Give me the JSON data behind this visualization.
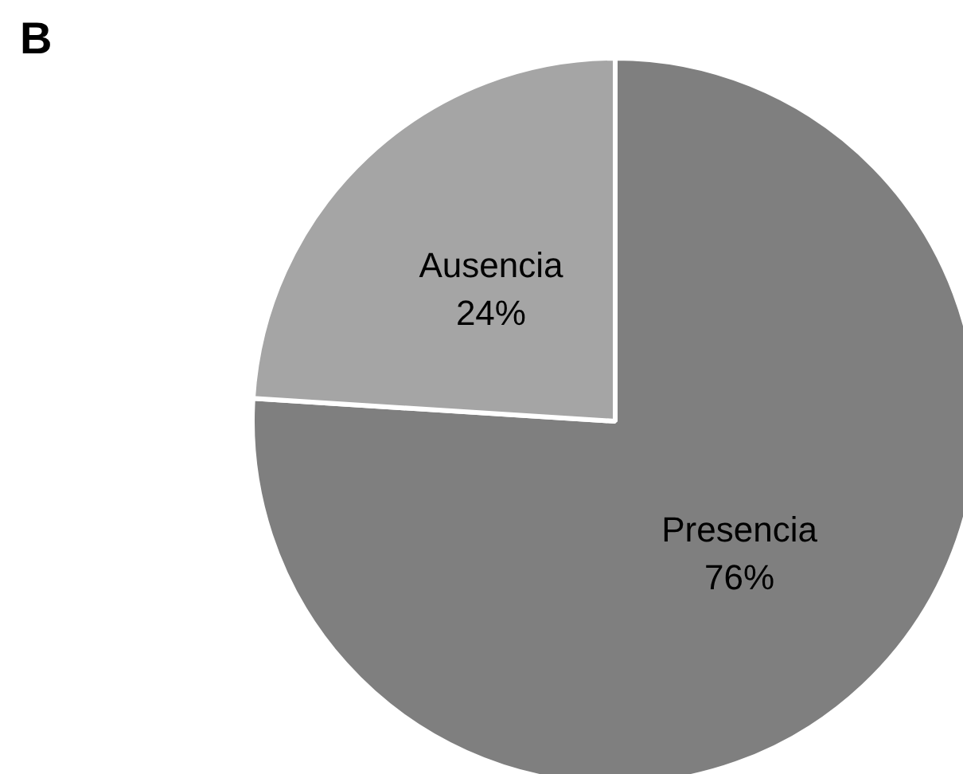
{
  "chart_data": {
    "type": "pie",
    "title": "B",
    "categories": [
      "Presencia",
      "Ausencia"
    ],
    "values": [
      76,
      24
    ],
    "colors": [
      "#7f7f7f",
      "#a5a5a5"
    ],
    "value_labels": [
      "76%",
      "24%"
    ]
  }
}
